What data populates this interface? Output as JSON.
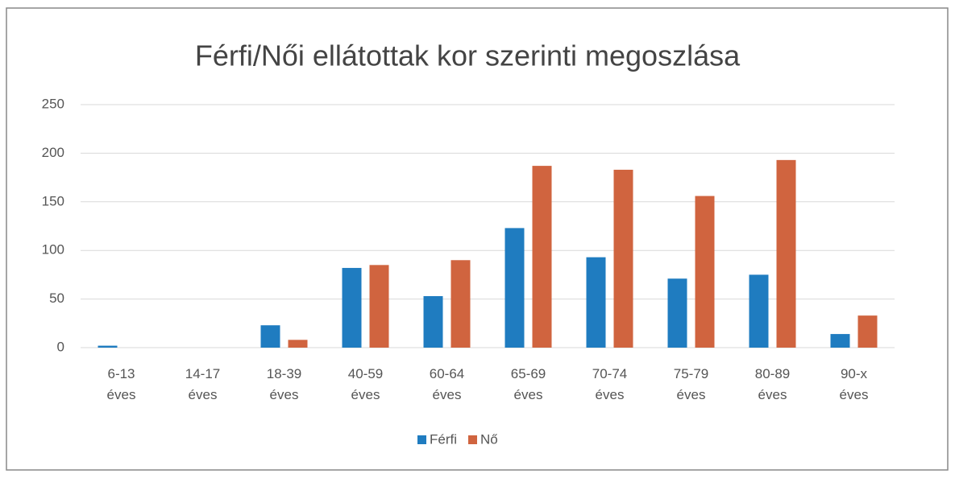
{
  "chart_data": {
    "type": "bar",
    "title": "Férfi/Női ellátottak kor szerinti megoszlása",
    "categories": [
      "6-13 éves",
      "14-17 éves",
      "18-39 éves",
      "40-59 éves",
      "60-64 éves",
      "65-69 éves",
      "70-74 éves",
      "75-79 éves",
      "80-89 éves",
      "90-x éves"
    ],
    "series": [
      {
        "name": "Férfi",
        "color": "#1f7cc0",
        "values": [
          2,
          0,
          23,
          82,
          53,
          123,
          93,
          71,
          75,
          14
        ]
      },
      {
        "name": "Nő",
        "color": "#d0643f",
        "values": [
          0,
          0,
          8,
          85,
          90,
          187,
          183,
          156,
          193,
          33
        ]
      }
    ],
    "ylim": [
      0,
      250
    ],
    "yticks": [
      0,
      50,
      100,
      150,
      200,
      250
    ],
    "grid": true,
    "legend": "bottom"
  }
}
